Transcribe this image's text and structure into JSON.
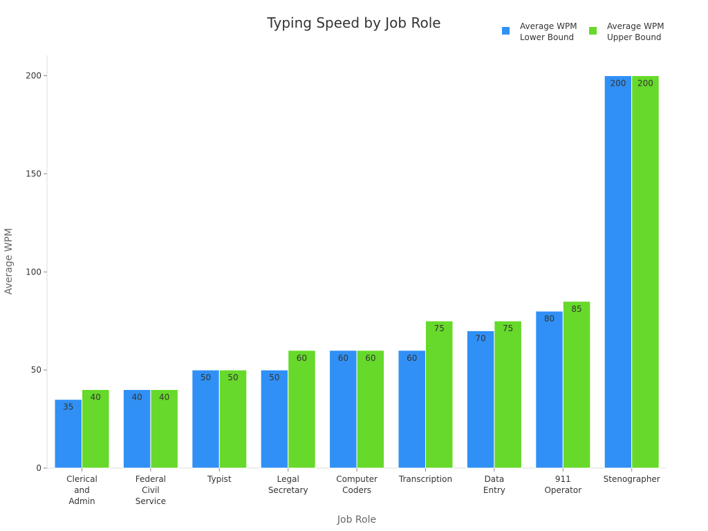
{
  "chart_data": {
    "type": "bar",
    "title": "Typing Speed by Job Role",
    "xlabel": "Job Role",
    "ylabel": "Average WPM",
    "ylim": [
      0,
      210
    ],
    "yticks": [
      0,
      50,
      100,
      150,
      200
    ],
    "grid": false,
    "legend_position": "top-right",
    "categories": [
      [
        "Clerical",
        "and",
        "Admin"
      ],
      [
        "Federal",
        "Civil",
        "Service"
      ],
      [
        "Typist"
      ],
      [
        "Legal",
        "Secretary"
      ],
      [
        "Computer",
        "Coders"
      ],
      [
        "Transcription"
      ],
      [
        "Data",
        "Entry"
      ],
      [
        "911",
        "Operator"
      ],
      [
        "Stenographer"
      ]
    ],
    "series": [
      {
        "name_lines": [
          "Average WPM",
          "Lower Bound"
        ],
        "color": "#3090f5",
        "values": [
          35,
          40,
          50,
          50,
          60,
          60,
          70,
          80,
          200
        ]
      },
      {
        "name_lines": [
          "Average WPM",
          "Upper Bound"
        ],
        "color": "#66d92a",
        "values": [
          40,
          40,
          50,
          60,
          60,
          75,
          75,
          85,
          200
        ]
      }
    ]
  }
}
